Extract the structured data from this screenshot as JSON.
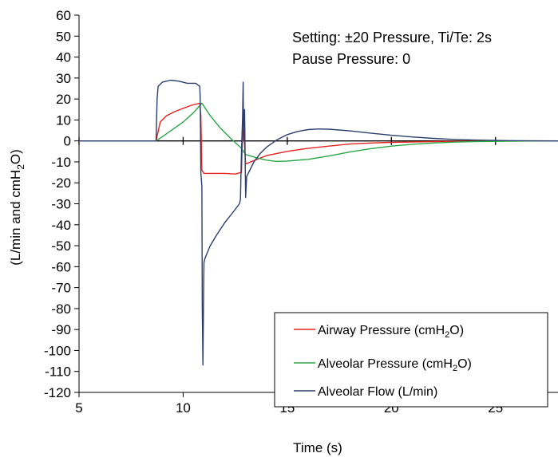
{
  "chart_data": {
    "type": "line",
    "xlabel": "Time (s)",
    "ylabel": {
      "prefix": "(L/min and cmH",
      "subscript": "2",
      "suffix": "O)"
    },
    "xlim": [
      5,
      28
    ],
    "ylim": [
      -120,
      60
    ],
    "x_ticks": [
      5,
      10,
      15,
      20,
      25
    ],
    "y_ticks": [
      60,
      50,
      40,
      30,
      20,
      10,
      0,
      -10,
      -20,
      -30,
      -40,
      -50,
      -60,
      -70,
      -80,
      -90,
      -100,
      -110,
      -120
    ],
    "grid": false,
    "annotations": [
      "Setting: ±20 Pressure, Ti/Te: 2s",
      "Pause Pressure: 0"
    ],
    "legend_position": "bottom-right",
    "series": [
      {
        "name": "Airway Pressure",
        "unit_prefix": "(cmH",
        "unit_sub": "2",
        "unit_suffix": "O)",
        "color": "#e8231f",
        "points": [
          [
            5,
            0
          ],
          [
            8.7,
            0
          ],
          [
            8.9,
            9
          ],
          [
            9.2,
            12
          ],
          [
            9.6,
            14
          ],
          [
            10.0,
            15.5
          ],
          [
            10.4,
            17
          ],
          [
            10.8,
            18
          ],
          [
            10.85,
            12
          ],
          [
            10.9,
            -14
          ],
          [
            11.0,
            -15.5
          ],
          [
            11.5,
            -15.5
          ],
          [
            12.0,
            -15.5
          ],
          [
            12.5,
            -15.8
          ],
          [
            12.8,
            -15
          ],
          [
            12.85,
            3
          ],
          [
            12.9,
            6
          ],
          [
            13.0,
            -11
          ],
          [
            13.5,
            -9
          ],
          [
            14.0,
            -7
          ],
          [
            15.0,
            -5
          ],
          [
            16.0,
            -3.5
          ],
          [
            17.0,
            -2.5
          ],
          [
            18.0,
            -1.5
          ],
          [
            19.0,
            -1
          ],
          [
            20.0,
            -0.7
          ],
          [
            22.0,
            -0.3
          ],
          [
            24.0,
            -0.1
          ],
          [
            26.0,
            0
          ],
          [
            28.0,
            0
          ]
        ]
      },
      {
        "name": "Alveolar Pressure",
        "unit_prefix": "(cmH",
        "unit_sub": "2",
        "unit_suffix": "O)",
        "color": "#29a745",
        "points": [
          [
            5,
            0
          ],
          [
            8.7,
            0
          ],
          [
            9.0,
            2
          ],
          [
            9.5,
            5.5
          ],
          [
            10.0,
            9
          ],
          [
            10.5,
            13.5
          ],
          [
            10.9,
            18
          ],
          [
            11.3,
            12
          ],
          [
            11.8,
            6
          ],
          [
            12.3,
            1
          ],
          [
            12.8,
            -3.5
          ],
          [
            13.0,
            -6.5
          ],
          [
            13.5,
            -8
          ],
          [
            14.0,
            -9.2
          ],
          [
            14.5,
            -9.8
          ],
          [
            15.0,
            -9.6
          ],
          [
            16.0,
            -8.8
          ],
          [
            17.0,
            -7.2
          ],
          [
            18.0,
            -5.3
          ],
          [
            19.0,
            -3.7
          ],
          [
            20.0,
            -2.5
          ],
          [
            21.0,
            -1.6
          ],
          [
            22.0,
            -1
          ],
          [
            23.0,
            -0.6
          ],
          [
            24.0,
            -0.3
          ],
          [
            26.0,
            -0.1
          ],
          [
            28.0,
            0
          ]
        ]
      },
      {
        "name": "Alveolar Flow",
        "unit_prefix": "(L/min)",
        "unit_sub": "",
        "unit_suffix": "",
        "color": "#2c3e6f",
        "points": [
          [
            5,
            0
          ],
          [
            8.7,
            0
          ],
          [
            8.75,
            20
          ],
          [
            8.8,
            26
          ],
          [
            9.0,
            28
          ],
          [
            9.4,
            29
          ],
          [
            9.8,
            28.5
          ],
          [
            10.2,
            27.5
          ],
          [
            10.6,
            27.5
          ],
          [
            10.8,
            26
          ],
          [
            10.82,
            20
          ],
          [
            10.85,
            -15
          ],
          [
            10.9,
            -22
          ],
          [
            10.92,
            -80
          ],
          [
            10.95,
            -107
          ],
          [
            10.98,
            -75
          ],
          [
            11.0,
            -58
          ],
          [
            11.05,
            -56
          ],
          [
            11.3,
            -50
          ],
          [
            11.6,
            -45
          ],
          [
            12.0,
            -39
          ],
          [
            12.4,
            -34
          ],
          [
            12.7,
            -30
          ],
          [
            12.75,
            -28
          ],
          [
            12.8,
            -5
          ],
          [
            12.85,
            10
          ],
          [
            12.88,
            28
          ],
          [
            12.9,
            0
          ],
          [
            12.95,
            15
          ],
          [
            13.0,
            -27
          ],
          [
            13.05,
            -17
          ],
          [
            13.2,
            -14
          ],
          [
            13.4,
            -10
          ],
          [
            13.7,
            -6
          ],
          [
            14.0,
            -3
          ],
          [
            14.5,
            0.5
          ],
          [
            15.0,
            3
          ],
          [
            15.5,
            4.5
          ],
          [
            16.0,
            5.4
          ],
          [
            16.5,
            5.7
          ],
          [
            17.0,
            5.6
          ],
          [
            18.0,
            4.8
          ],
          [
            19.0,
            3.7
          ],
          [
            20.0,
            2.7
          ],
          [
            21.0,
            1.9
          ],
          [
            22.0,
            1.2
          ],
          [
            23.0,
            0.7
          ],
          [
            24.0,
            0.4
          ],
          [
            25.0,
            0.2
          ],
          [
            26.0,
            0.1
          ],
          [
            28.0,
            0
          ]
        ]
      }
    ]
  }
}
